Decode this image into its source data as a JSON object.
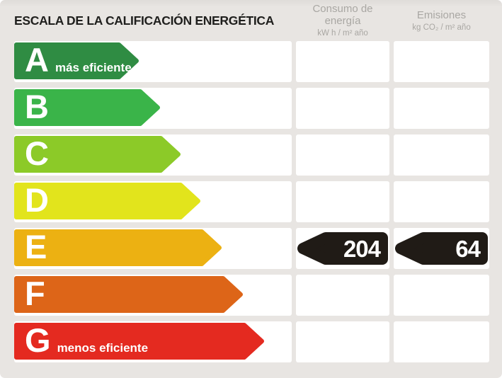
{
  "title": "ESCALA DE LA CALIFICACIÓN ENERGÉTICA",
  "columns": [
    {
      "id": "consumo",
      "label": "Consumo de energía",
      "unit": "kW h / m² año"
    },
    {
      "id": "emisiones",
      "label": "Emisiones",
      "unit": "kg CO₂ / m² año"
    }
  ],
  "ratings": [
    {
      "letter": "A",
      "note": "más eficiente",
      "color": "#2f8c43",
      "arrow_width": 176
    },
    {
      "letter": "B",
      "note": "",
      "color": "#3ab449",
      "arrow_width": 206
    },
    {
      "letter": "C",
      "note": "",
      "color": "#8cca28",
      "arrow_width": 235
    },
    {
      "letter": "D",
      "note": "",
      "color": "#e2e41c",
      "arrow_width": 263
    },
    {
      "letter": "E",
      "note": "",
      "color": "#ecb112",
      "arrow_width": 293
    },
    {
      "letter": "F",
      "note": "",
      "color": "#dd6518",
      "arrow_width": 323
    },
    {
      "letter": "G",
      "note": "menos eficiente",
      "color": "#e42a20",
      "arrow_width": 353
    }
  ],
  "current_rating": {
    "letter": "E",
    "consumo": "204",
    "emisiones": "64",
    "marker_color": "#201b16"
  },
  "chart_data": {
    "type": "bar",
    "title": "ESCALA DE LA CALIFICACIÓN ENERGÉTICA",
    "categories": [
      "A",
      "B",
      "C",
      "D",
      "E",
      "F",
      "G"
    ],
    "category_annotations": {
      "A": "más eficiente",
      "G": "menos eficiente"
    },
    "bar_colors": [
      "#2f8c43",
      "#3ab449",
      "#8cca28",
      "#e2e41c",
      "#ecb112",
      "#dd6518",
      "#e42a20"
    ],
    "bar_relative_lengths": [
      176,
      206,
      235,
      263,
      293,
      323,
      353
    ],
    "highlighted_category": "E",
    "series": [
      {
        "name": "Consumo de energía (kW h / m² año)",
        "values": [
          null,
          null,
          null,
          null,
          204,
          null,
          null
        ]
      },
      {
        "name": "Emisiones (kg CO₂ / m² año)",
        "values": [
          null,
          null,
          null,
          null,
          64,
          null,
          null
        ]
      }
    ],
    "legend_position": "none",
    "grid": false
  }
}
